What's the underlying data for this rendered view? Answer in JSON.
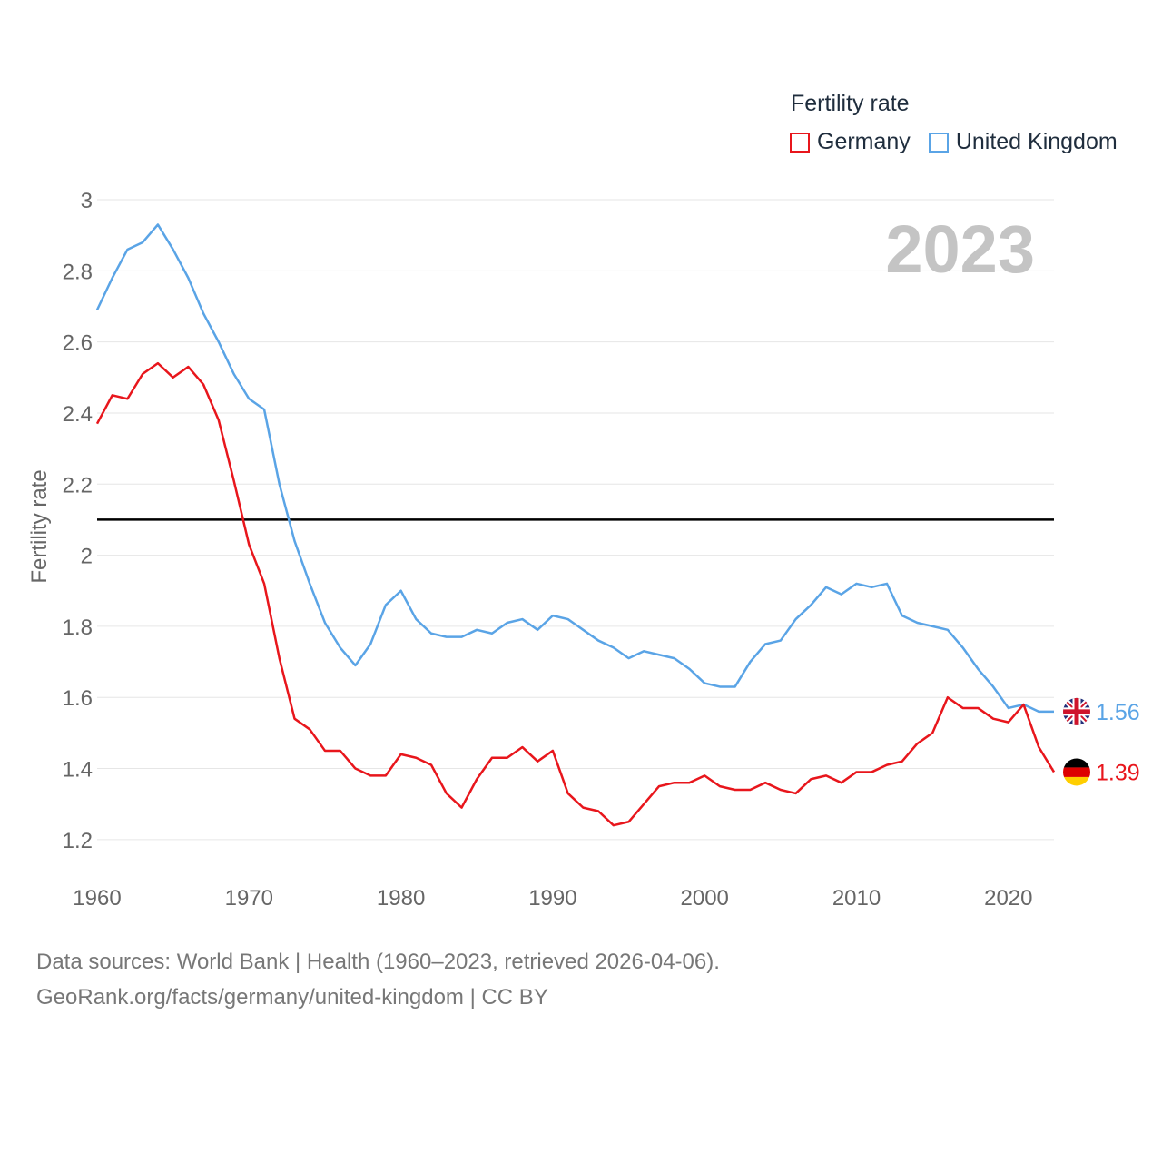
{
  "chart_data": {
    "type": "line",
    "legend_title": "Fertility rate",
    "ylabel": "Fertility rate",
    "xlabel": "",
    "year_label": "2023",
    "xlim": [
      1960,
      2023
    ],
    "ylim": [
      1.1,
      3.0
    ],
    "x_ticks": [
      1960,
      1970,
      1980,
      1990,
      2000,
      2010,
      2020
    ],
    "y_ticks": [
      1.2,
      1.4,
      1.6,
      1.8,
      2,
      2.2,
      2.4,
      2.6,
      2.8,
      3
    ],
    "y_tick_labels": [
      "1.2",
      "1.4",
      "1.6",
      "1.8",
      "2",
      "2.2",
      "2.4",
      "2.6",
      "2.8",
      "3"
    ],
    "reference_line": 2.1,
    "x": [
      1960,
      1961,
      1962,
      1963,
      1964,
      1965,
      1966,
      1967,
      1968,
      1969,
      1970,
      1971,
      1972,
      1973,
      1974,
      1975,
      1976,
      1977,
      1978,
      1979,
      1980,
      1981,
      1982,
      1983,
      1984,
      1985,
      1986,
      1987,
      1988,
      1989,
      1990,
      1991,
      1992,
      1993,
      1994,
      1995,
      1996,
      1997,
      1998,
      1999,
      2000,
      2001,
      2002,
      2003,
      2004,
      2005,
      2006,
      2007,
      2008,
      2009,
      2010,
      2011,
      2012,
      2013,
      2014,
      2015,
      2016,
      2017,
      2018,
      2019,
      2020,
      2021,
      2022,
      2023
    ],
    "series": [
      {
        "name": "Germany",
        "color": "#e8161c",
        "end_label": "1.39",
        "values": [
          2.37,
          2.45,
          2.44,
          2.51,
          2.54,
          2.5,
          2.53,
          2.48,
          2.38,
          2.21,
          2.03,
          1.92,
          1.71,
          1.54,
          1.51,
          1.45,
          1.45,
          1.4,
          1.38,
          1.38,
          1.44,
          1.43,
          1.41,
          1.33,
          1.29,
          1.37,
          1.43,
          1.43,
          1.46,
          1.42,
          1.45,
          1.33,
          1.29,
          1.28,
          1.24,
          1.25,
          1.3,
          1.35,
          1.36,
          1.36,
          1.38,
          1.35,
          1.34,
          1.34,
          1.36,
          1.34,
          1.33,
          1.37,
          1.38,
          1.36,
          1.39,
          1.39,
          1.41,
          1.42,
          1.47,
          1.5,
          1.6,
          1.57,
          1.57,
          1.54,
          1.53,
          1.58,
          1.46,
          1.39
        ]
      },
      {
        "name": "United Kingdom",
        "color": "#5aa4e6",
        "end_label": "1.56",
        "values": [
          2.69,
          2.78,
          2.86,
          2.88,
          2.93,
          2.86,
          2.78,
          2.68,
          2.6,
          2.51,
          2.44,
          2.41,
          2.2,
          2.04,
          1.92,
          1.81,
          1.74,
          1.69,
          1.75,
          1.86,
          1.9,
          1.82,
          1.78,
          1.77,
          1.77,
          1.79,
          1.78,
          1.81,
          1.82,
          1.79,
          1.83,
          1.82,
          1.79,
          1.76,
          1.74,
          1.71,
          1.73,
          1.72,
          1.71,
          1.68,
          1.64,
          1.63,
          1.63,
          1.7,
          1.75,
          1.76,
          1.82,
          1.86,
          1.91,
          1.89,
          1.92,
          1.91,
          1.92,
          1.83,
          1.81,
          1.8,
          1.79,
          1.74,
          1.68,
          1.63,
          1.57,
          1.58,
          1.56,
          1.56
        ]
      }
    ]
  },
  "footer": {
    "line1": "Data sources: World Bank | Health (1960–2023, retrieved 2026-04-06).",
    "line2": "GeoRank.org/facts/germany/united-kingdom | CC BY"
  },
  "icons": {
    "uk_flag": "uk-flag-icon",
    "germany_flag": "germany-flag-icon"
  }
}
